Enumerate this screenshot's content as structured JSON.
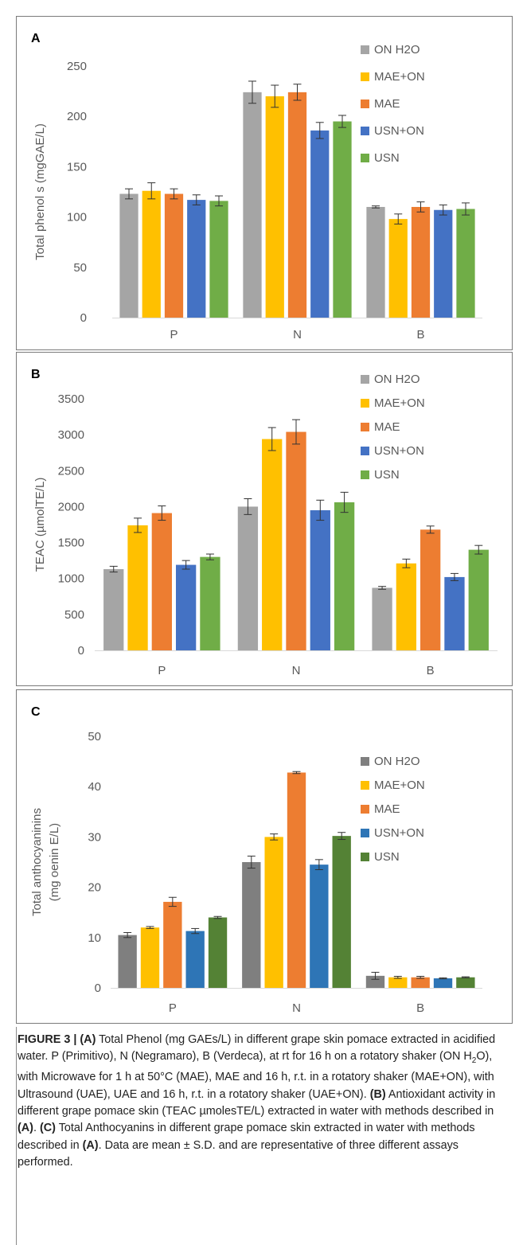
{
  "series_colors": [
    "#a5a5a5",
    "#ffc000",
    "#ed7d31",
    "#4472c4",
    "#70ad47"
  ],
  "series_colors_c": [
    "#7f7f7f",
    "#ffc000",
    "#ed7d31",
    "#2e75b6",
    "#548235"
  ],
  "chart_data": [
    {
      "type": "bar",
      "panel_label": "A",
      "categories": [
        "P",
        "N",
        "B"
      ],
      "ylabel": "Total phenol s (mgGAE/L)",
      "ylim": [
        0,
        250
      ],
      "yticks": [
        0,
        50,
        100,
        150,
        200,
        250
      ],
      "legend_placement": "top-right",
      "grid": false,
      "series": [
        {
          "name": "ON H2O",
          "values": [
            123,
            224,
            110
          ],
          "errors": [
            5,
            11,
            1
          ]
        },
        {
          "name": "MAE+ON",
          "values": [
            126,
            220,
            98
          ],
          "errors": [
            8,
            11,
            5
          ]
        },
        {
          "name": "MAE",
          "values": [
            123,
            224,
            110
          ],
          "errors": [
            5,
            8,
            5
          ]
        },
        {
          "name": "USN+ON",
          "values": [
            117,
            186,
            107
          ],
          "errors": [
            5,
            8,
            5
          ]
        },
        {
          "name": "USN",
          "values": [
            116,
            195,
            108
          ],
          "errors": [
            5,
            6,
            6
          ]
        }
      ]
    },
    {
      "type": "bar",
      "panel_label": "B",
      "categories": [
        "P",
        "N",
        "B"
      ],
      "ylabel": "TEAC (µmolTE/L)",
      "ylim": [
        0,
        3500
      ],
      "yticks": [
        0,
        500,
        1000,
        1500,
        2000,
        2500,
        3000,
        3500
      ],
      "legend_placement": "top-right",
      "grid": false,
      "series": [
        {
          "name": "ON H2O",
          "values": [
            1130,
            2000,
            870
          ],
          "errors": [
            40,
            110,
            20
          ]
        },
        {
          "name": "MAE+ON",
          "values": [
            1740,
            2940,
            1210
          ],
          "errors": [
            100,
            160,
            60
          ]
        },
        {
          "name": "MAE",
          "values": [
            1910,
            3040,
            1680
          ],
          "errors": [
            100,
            170,
            50
          ]
        },
        {
          "name": "USN+ON",
          "values": [
            1190,
            1950,
            1020
          ],
          "errors": [
            60,
            140,
            50
          ]
        },
        {
          "name": "USN",
          "values": [
            1300,
            2060,
            1400
          ],
          "errors": [
            40,
            140,
            60
          ]
        }
      ]
    },
    {
      "type": "bar",
      "panel_label": "C",
      "categories": [
        "P",
        "N",
        "B"
      ],
      "ylabel": "Total anthocyaninins (mg oenin E/L)",
      "ylabel_lines": [
        "Total anthocyaninins",
        "(mg oenin E/L)"
      ],
      "ylim": [
        0,
        50
      ],
      "yticks": [
        0,
        10,
        20,
        30,
        40,
        50
      ],
      "legend_placement": "right",
      "grid": false,
      "series": [
        {
          "name": "ON H2O",
          "values": [
            10.5,
            25,
            2.4
          ],
          "errors": [
            0.5,
            1.2,
            0.7
          ]
        },
        {
          "name": "MAE+ON",
          "values": [
            12,
            30,
            2.1
          ],
          "errors": [
            0.2,
            0.6,
            0.2
          ]
        },
        {
          "name": "MAE",
          "values": [
            17.1,
            42.8,
            2.1
          ],
          "errors": [
            0.9,
            0.2,
            0.2
          ]
        },
        {
          "name": "USN+ON",
          "values": [
            11.3,
            24.5,
            1.9
          ],
          "errors": [
            0.5,
            1.0,
            0.1
          ]
        },
        {
          "name": "USN",
          "values": [
            14,
            30.2,
            2.1
          ],
          "errors": [
            0.2,
            0.7,
            0.1
          ]
        }
      ]
    }
  ],
  "caption": {
    "figure_label": "FIGURE 3 | ",
    "a_tag": "(A)",
    "a_text_1": " Total Phenol (mg GAEs/L) in different grape skin pomace extracted in acidified water. P (Primitivo), N (Negramaro), B (Verdeca), at rt for 16 h on a rotatory shaker (ON H",
    "a_sub": "2",
    "a_text_2": "O), with Microwave for 1 h at 50°C (MAE), MAE and 16 h, r.t. in a rotatory shaker (MAE+ON), with Ultrasound (UAE), UAE and 16 h, r.t. in a rotatory shaker (UAE+ON). ",
    "b_tag": "(B)",
    "b_text_1": " Antioxidant activity in different grape pomace skin (TEAC µmolesTE/L) extracted in water with methods described in ",
    "b_ref": "(A)",
    "b_text_2": ". ",
    "c_tag": "(C)",
    "c_text_1": " Total Anthocyanins in different grape pomace skin extracted in water with methods described in ",
    "c_ref": "(A)",
    "c_text_2": ". Data are mean ± S.D. and are representative of three different assays performed."
  }
}
